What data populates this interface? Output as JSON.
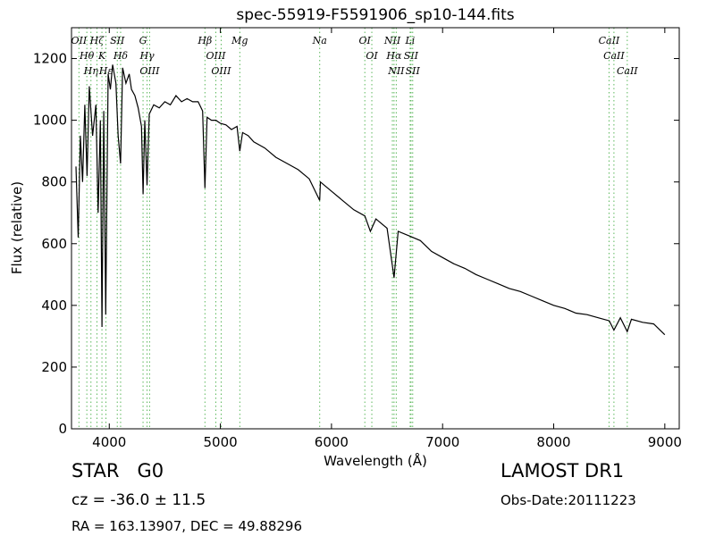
{
  "chart_data": {
    "type": "line",
    "title": "spec-55919-F5591906_sp10-144.fits",
    "x_label": "Wavelength (Å)",
    "y_label": "Flux (relative)",
    "xlim": [
      3660,
      9130
    ],
    "ylim": [
      0,
      1300
    ],
    "xticks": [
      4000,
      5000,
      6000,
      7000,
      8000,
      9000
    ],
    "yticks": [
      0,
      200,
      400,
      600,
      800,
      1000,
      1200
    ],
    "color": "#000000",
    "line_color": "#5cb85c",
    "x": [
      3700,
      3720,
      3740,
      3760,
      3780,
      3800,
      3820,
      3850,
      3880,
      3900,
      3920,
      3934,
      3950,
      3968,
      3990,
      4010,
      4030,
      4060,
      4080,
      4102,
      4120,
      4150,
      4180,
      4200,
      4230,
      4260,
      4290,
      4304,
      4320,
      4340,
      4360,
      4400,
      4450,
      4500,
      4550,
      4600,
      4650,
      4700,
      4750,
      4800,
      4840,
      4861,
      4880,
      4920,
      4960,
      5000,
      5050,
      5100,
      5150,
      5175,
      5200,
      5250,
      5300,
      5400,
      5500,
      5600,
      5700,
      5800,
      5894,
      5900,
      6000,
      6100,
      6200,
      6300,
      6350,
      6400,
      6500,
      6563,
      6600,
      6700,
      6800,
      6900,
      7000,
      7100,
      7200,
      7300,
      7400,
      7500,
      7600,
      7700,
      7800,
      7900,
      8000,
      8100,
      8200,
      8300,
      8400,
      8500,
      8542,
      8600,
      8662,
      8700,
      8800,
      8900,
      9000
    ],
    "values": [
      850,
      620,
      950,
      800,
      1050,
      820,
      1110,
      950,
      1050,
      700,
      1000,
      330,
      1030,
      370,
      1150,
      1100,
      1180,
      1120,
      950,
      860,
      1170,
      1120,
      1150,
      1100,
      1080,
      1040,
      980,
      760,
      1000,
      790,
      1020,
      1050,
      1040,
      1060,
      1050,
      1080,
      1060,
      1070,
      1060,
      1060,
      1030,
      780,
      1010,
      1000,
      1000,
      990,
      985,
      970,
      980,
      900,
      960,
      950,
      930,
      910,
      880,
      860,
      840,
      810,
      740,
      800,
      770,
      740,
      710,
      690,
      640,
      680,
      650,
      490,
      640,
      625,
      610,
      575,
      555,
      535,
      520,
      500,
      485,
      470,
      455,
      445,
      430,
      415,
      400,
      390,
      375,
      370,
      360,
      350,
      320,
      360,
      315,
      355,
      345,
      340,
      305
    ],
    "lines": [
      {
        "label": "OII",
        "x": 3727
      },
      {
        "label": "Hθ",
        "x": 3798
      },
      {
        "label": "Hη",
        "x": 3835
      },
      {
        "label": "Hζ",
        "x": 3889
      },
      {
        "label": "K",
        "x": 3934
      },
      {
        "label": "Hε",
        "x": 3970
      },
      {
        "label": "SII",
        "x": 4072
      },
      {
        "label": "Hδ",
        "x": 4102
      },
      {
        "label": "G",
        "x": 4304
      },
      {
        "label": "Hγ",
        "x": 4340
      },
      {
        "label": "OIII",
        "x": 4363
      },
      {
        "label": "Hβ",
        "x": 4861
      },
      {
        "label": "OIII",
        "x": 4959
      },
      {
        "label": "OIII",
        "x": 5007
      },
      {
        "label": "Mg",
        "x": 5175
      },
      {
        "label": "Na",
        "x": 5894
      },
      {
        "label": "OI",
        "x": 6300
      },
      {
        "label": "OI",
        "x": 6363
      },
      {
        "label": "NII",
        "x": 6548
      },
      {
        "label": "Hα",
        "x": 6563
      },
      {
        "label": "NII",
        "x": 6583
      },
      {
        "label": "Li",
        "x": 6708
      },
      {
        "label": "SII",
        "x": 6716
      },
      {
        "label": "SII",
        "x": 6731
      },
      {
        "label": "CaII",
        "x": 8498
      },
      {
        "label": "CaII",
        "x": 8542
      },
      {
        "label": "CaII",
        "x": 8662
      }
    ]
  },
  "info": {
    "object": "STAR   G0",
    "redshift": "cz = -36.0 ± 11.5",
    "coords": "RA = 163.13907, DEC = 49.88296",
    "survey": "LAMOST DR1",
    "date": "Obs-Date:20111223"
  }
}
